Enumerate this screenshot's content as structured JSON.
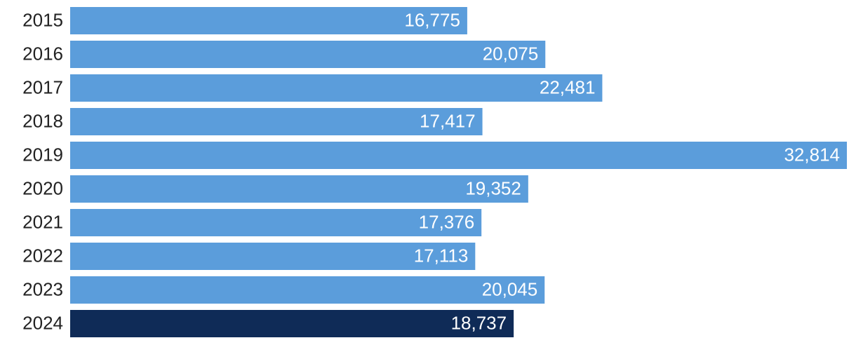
{
  "chart_data": {
    "type": "bar",
    "orientation": "horizontal",
    "categories": [
      "2015",
      "2016",
      "2017",
      "2018",
      "2019",
      "2020",
      "2021",
      "2022",
      "2023",
      "2024"
    ],
    "values": [
      16775,
      20075,
      22481,
      17417,
      32814,
      19352,
      17376,
      17113,
      20045,
      18737
    ],
    "value_labels": [
      "16,775",
      "20,075",
      "22,481",
      "17,417",
      "32,814",
      "19,352",
      "17,376",
      "17,113",
      "20,045",
      "18,737"
    ],
    "colors": [
      "#5b9ddb",
      "#5b9ddb",
      "#5b9ddb",
      "#5b9ddb",
      "#5b9ddb",
      "#5b9ddb",
      "#5b9ddb",
      "#5b9ddb",
      "#5b9ddb",
      "#0f2b57"
    ]
  }
}
